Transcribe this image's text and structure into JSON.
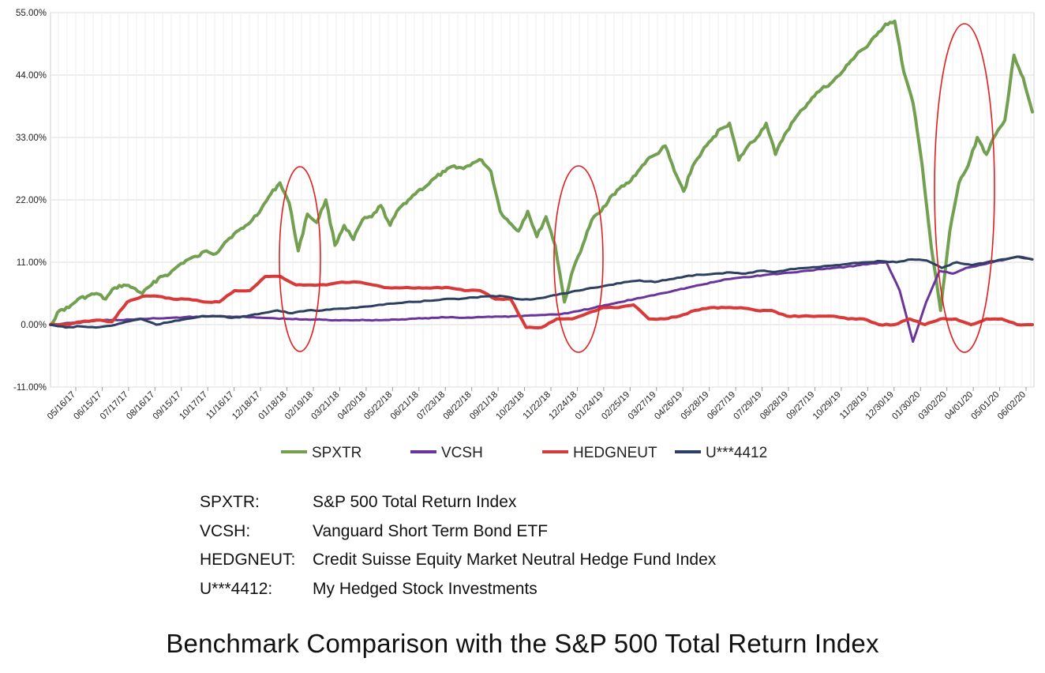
{
  "chart_data": {
    "type": "line",
    "title": "",
    "xlabel": "",
    "ylabel": "",
    "ylim": [
      -11,
      55
    ],
    "y_ticks": [
      55,
      44,
      33,
      22,
      11,
      0,
      -11
    ],
    "y_tick_labels": [
      "55.00%",
      "44.00%",
      "33.00%",
      "22.00%",
      "11.00%",
      "0.00%",
      "-11.00%"
    ],
    "x_tick_labels": [
      "05/16/17",
      "06/15/17",
      "07/17/17",
      "08/16/17",
      "09/15/17",
      "10/17/17",
      "11/16/17",
      "12/18/17",
      "01/18/18",
      "02/19/18",
      "03/21/18",
      "04/20/18",
      "05/22/18",
      "06/21/18",
      "07/23/18",
      "08/22/18",
      "09/21/18",
      "10/23/18",
      "11/22/18",
      "12/24/18",
      "01/24/19",
      "02/25/19",
      "03/27/19",
      "04/26/19",
      "05/28/19",
      "06/27/19",
      "07/29/19",
      "08/28/19",
      "09/27/19",
      "10/29/19",
      "11/28/19",
      "12/30/19",
      "01/30/20",
      "03/02/20",
      "04/01/20",
      "05/01/20",
      "06/02/20"
    ],
    "grid": true,
    "legend_position": "bottom",
    "series": [
      {
        "name": "SPXTR",
        "color": "#72a050",
        "values": [
          0,
          2.5,
          3.0,
          4.5,
          5.0,
          5.5,
          4.5,
          6.5,
          7.0,
          6.5,
          5.5,
          7.0,
          8.5,
          9.0,
          10.5,
          11.5,
          12.0,
          13.0,
          12.5,
          14.5,
          16.0,
          17.0,
          18.5,
          20.5,
          23.0,
          25.0,
          21.5,
          13.0,
          19.5,
          18.0,
          22.0,
          14.0,
          17.5,
          15.0,
          18.5,
          19.0,
          21.0,
          17.5,
          20.5,
          22.0,
          23.5,
          24.5,
          26.0,
          27.0,
          28.0,
          27.5,
          28.5,
          29.0,
          27.0,
          20.0,
          18.0,
          16.5,
          20.0,
          15.5,
          19.0,
          14.0,
          4.0,
          10.0,
          14.0,
          18.5,
          20.0,
          22.5,
          24.0,
          25.0,
          27.0,
          29.0,
          30.0,
          31.5,
          27.0,
          23.5,
          28.0,
          30.5,
          32.5,
          34.5,
          35.5,
          29.0,
          31.5,
          33.0,
          35.5,
          30.0,
          33.5,
          36.0,
          38.0,
          40.0,
          41.5,
          42.5,
          44.0,
          46.0,
          48.0,
          49.0,
          51.0,
          53.0,
          53.5,
          44.5,
          39.0,
          28.0,
          13.5,
          2.5,
          16.5,
          25.0,
          28.0,
          33.0,
          30.0,
          33.5,
          36.0,
          47.5,
          43.5,
          37.5
        ],
        "line_width": 4
      },
      {
        "name": "VCSH",
        "color": "#6a359a",
        "values": [
          0,
          0.2,
          0.3,
          0.6,
          0.8,
          0.8,
          0.9,
          1.0,
          1.1,
          1.2,
          1.3,
          1.4,
          1.5,
          1.5,
          1.4,
          1.3,
          1.2,
          1.1,
          1.0,
          0.9,
          0.9,
          0.8,
          0.8,
          0.8,
          0.8,
          0.8,
          0.9,
          1.0,
          1.1,
          1.2,
          1.3,
          1.2,
          1.3,
          1.4,
          1.4,
          1.5,
          1.6,
          1.7,
          1.8,
          2.0,
          2.5,
          3.0,
          3.5,
          4.0,
          4.5,
          5.0,
          5.5,
          6.0,
          6.5,
          7.0,
          7.5,
          8.0,
          8.3,
          8.5,
          8.8,
          9.0,
          9.2,
          9.5,
          9.8,
          10.0,
          10.2,
          10.5,
          10.8,
          11.0,
          6.0,
          -3.0,
          4.0,
          9.5,
          9.0,
          10.0,
          10.5,
          11.0,
          11.5,
          12.0,
          11.5
        ],
        "line_width": 3
      },
      {
        "name": "HEDGNEUT",
        "color": "#d83a3a",
        "values": [
          0,
          0,
          0.5,
          0.8,
          0.5,
          4.0,
          5.0,
          5.0,
          4.5,
          4.5,
          4.0,
          4.0,
          6.0,
          6.0,
          8.5,
          8.5,
          7.0,
          7.0,
          7.0,
          7.5,
          7.5,
          7.0,
          6.5,
          6.5,
          6.5,
          6.5,
          6.5,
          6.0,
          6.0,
          4.5,
          4.5,
          -0.5,
          -0.5,
          1.0,
          1.0,
          2.0,
          3.0,
          3.0,
          3.5,
          1.0,
          1.0,
          1.5,
          2.5,
          3.0,
          3.0,
          3.0,
          2.5,
          2.5,
          1.5,
          1.5,
          1.5,
          1.5,
          1.0,
          1.0,
          0.0,
          0.0,
          1.0,
          0.0,
          1.0,
          1.0,
          0.0,
          1.0,
          1.0,
          0.0,
          0.0
        ],
        "line_width": 4
      },
      {
        "name": "U***4412",
        "color": "#2c4061",
        "values": [
          0,
          -0.5,
          -0.3,
          -0.5,
          -0.2,
          0.5,
          1.0,
          0,
          0.5,
          1.0,
          1.5,
          1.5,
          1.2,
          1.5,
          2.0,
          2.5,
          2.0,
          2.5,
          2.5,
          2.8,
          3.0,
          3.2,
          3.5,
          3.8,
          4.0,
          4.2,
          4.5,
          4.5,
          4.8,
          5.0,
          5.0,
          4.5,
          4.5,
          5.0,
          5.5,
          6.0,
          6.5,
          7.0,
          7.5,
          7.8,
          7.5,
          8.0,
          8.5,
          8.8,
          9.0,
          9.2,
          9.0,
          9.5,
          9.3,
          9.8,
          10.0,
          10.2,
          10.5,
          10.8,
          11.0,
          11.2,
          11.0,
          11.5,
          11.3,
          10.0,
          11.0,
          10.5,
          11.0,
          11.5,
          12.0,
          11.5
        ],
        "line_width": 3
      }
    ]
  },
  "legend": [
    {
      "label": "SPXTR",
      "color": "#72a050"
    },
    {
      "label": "VCSH",
      "color": "#6a359a"
    },
    {
      "label": "HEDGNEUT",
      "color": "#d83a3a"
    },
    {
      "label": "U***4412",
      "color": "#2c4061"
    }
  ],
  "definitions": [
    {
      "key": "SPXTR:",
      "value": "S&P 500 Total Return Index"
    },
    {
      "key": "VCSH:",
      "value": "Vanguard Short Term Bond ETF"
    },
    {
      "key": "HEDGNEUT:",
      "value": "Credit Suisse Equity Market Neutral Hedge Fund Index"
    },
    {
      "key": "U***4412:",
      "value": "My Hedged Stock Investments"
    }
  ],
  "caption": "Benchmark Comparison with the S&P 500 Total Return Index",
  "highlight_color": "#e02020"
}
